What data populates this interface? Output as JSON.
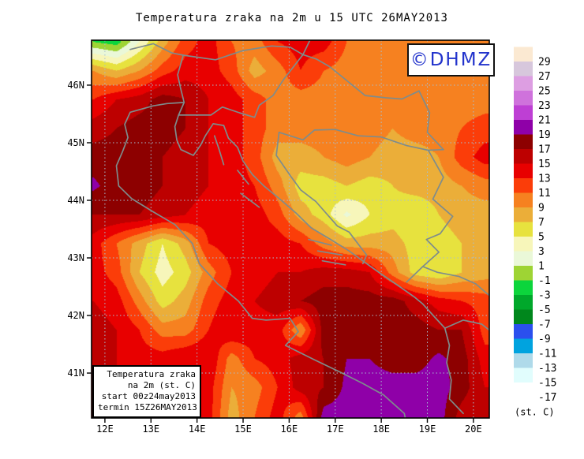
{
  "title": "Temperatura zraka na 2m u 15 UTC 26MAY2013",
  "logo": {
    "text": "©DHMZ",
    "color": "#2233cc"
  },
  "info_box": {
    "lines": [
      "Temperatura zraka",
      "na 2m (st. C)",
      "start 00z24may2013",
      "termin 15Z26MAY2013"
    ]
  },
  "axes": {
    "x_tick_labels": [
      "12E",
      "13E",
      "14E",
      "15E",
      "16E",
      "17E",
      "18E",
      "19E",
      "20E"
    ],
    "x_tick_values": [
      12,
      13,
      14,
      15,
      16,
      17,
      18,
      19,
      20
    ],
    "y_tick_labels": [
      "46N",
      "45N",
      "44N",
      "43N",
      "42N",
      "41N"
    ],
    "y_tick_values": [
      46,
      45,
      44,
      43,
      42,
      41
    ],
    "lon_range": [
      11.71,
      20.345
    ],
    "lat_range": [
      40.22,
      46.78
    ]
  },
  "colorbar": {
    "unit_label": "(st. C)",
    "tick_labels": [
      "29",
      "27",
      "25",
      "23",
      "21",
      "19",
      "17",
      "15",
      "13",
      "11",
      "9",
      "7",
      "5",
      "3",
      "1",
      "-1",
      "-3",
      "-5",
      "-7",
      "-9",
      "-11",
      "-13",
      "-15",
      "-17"
    ],
    "levels": [
      -17,
      -15,
      -13,
      -11,
      -9,
      -7,
      -5,
      -3,
      -1,
      1,
      3,
      5,
      7,
      9,
      11,
      13,
      15,
      17,
      19,
      21,
      23,
      25,
      27,
      29
    ],
    "band_colors": [
      "#FFFFFF",
      "#E1FDFD",
      "#AFDAEA",
      "#00A3DF",
      "#2B50EE",
      "#00871C",
      "#00A82B",
      "#0CD53C",
      "#9ED434",
      "#EAF8D8",
      "#F7F6BA",
      "#E7E23E",
      "#EBAE39",
      "#F68120",
      "#FB3D09",
      "#E80000",
      "#BD0000",
      "#8D0000",
      "#8F00A8",
      "#BE3FD4",
      "#CF72DC",
      "#DD9EE2",
      "#D7C7DC",
      "#FBE9D2"
    ]
  },
  "map_style": {
    "grid_color": "#a6bfd3",
    "coast_color": "#7e8c8c",
    "frame_color": "#000000",
    "background": "#ffffff"
  },
  "chart_data": {
    "type": "heatmap",
    "title": "Temperatura zraka na 2m u 15 UTC 26MAY2013",
    "units": "st. C",
    "valid_time": "15 UTC 26MAY2013",
    "x_lon": [
      11.75,
      12.25,
      12.75,
      13.25,
      13.75,
      14.25,
      14.75,
      15.25,
      15.75,
      16.25,
      16.75,
      17.25,
      17.75,
      18.25,
      18.75,
      19.25,
      19.75,
      20.25
    ],
    "y_lat": [
      46.75,
      46.25,
      45.75,
      45.25,
      44.75,
      44.25,
      43.75,
      43.25,
      42.75,
      42.25,
      41.75,
      41.25,
      40.75,
      40.25
    ],
    "values": [
      [
        -1,
        -2,
        3,
        8,
        12,
        14,
        11,
        10,
        13,
        14,
        14,
        11,
        10,
        10,
        10,
        10,
        10,
        10
      ],
      [
        9,
        7,
        9,
        12,
        14,
        14,
        12,
        8,
        10,
        13,
        11,
        10,
        10,
        10,
        10,
        10,
        11,
        11
      ],
      [
        13,
        15,
        16,
        18,
        17,
        15,
        14,
        12,
        10,
        10,
        10,
        10,
        10,
        10,
        10,
        10,
        10,
        10
      ],
      [
        16,
        17,
        18,
        18,
        17,
        15,
        14,
        12,
        10,
        10,
        10,
        10,
        10,
        9,
        10,
        10,
        11,
        12
      ],
      [
        18,
        18,
        18,
        17,
        16,
        15,
        14,
        12,
        8,
        8,
        9,
        10,
        9,
        8,
        8,
        9,
        12,
        14
      ],
      [
        19.4,
        18,
        18,
        17,
        16,
        15,
        14,
        13,
        10,
        6,
        6,
        7,
        6,
        7,
        8,
        8,
        9,
        10
      ],
      [
        17,
        17,
        17,
        16,
        15,
        14,
        14,
        14,
        12,
        8,
        6,
        2.5,
        5,
        6,
        5,
        7,
        8,
        8
      ],
      [
        14,
        11,
        8,
        5,
        8,
        13,
        14,
        14,
        14,
        13,
        10,
        8,
        8,
        8,
        6,
        6,
        7,
        8
      ],
      [
        14,
        12,
        7,
        4,
        6,
        10,
        13,
        14,
        15,
        15,
        16,
        16,
        15,
        10,
        6,
        5,
        7,
        8
      ],
      [
        15,
        14,
        10,
        6,
        8,
        12,
        14,
        15,
        16,
        17,
        18,
        18,
        18,
        18,
        16,
        14,
        13,
        12
      ],
      [
        16,
        15,
        13,
        10,
        10,
        13,
        15,
        14,
        14,
        9,
        18,
        18,
        18,
        18,
        18,
        17,
        17,
        12
      ],
      [
        15,
        15,
        14,
        14,
        15,
        15,
        10,
        13,
        14,
        16,
        17,
        19,
        19,
        18,
        18,
        19.5,
        18,
        14
      ],
      [
        16,
        15,
        15,
        15,
        15,
        14,
        9,
        10,
        13,
        16,
        17,
        19.5,
        20,
        20,
        20,
        20,
        18,
        15
      ],
      [
        16,
        16,
        16,
        15,
        15,
        14,
        8,
        11,
        14,
        10,
        20,
        20,
        20,
        20,
        20,
        20,
        16,
        15
      ]
    ]
  },
  "coastlines": [
    {
      "name": "italy-adriatic-coast",
      "points": [
        [
          13.72,
          45.7
        ],
        [
          13.35,
          45.68
        ],
        [
          13.05,
          45.64
        ],
        [
          12.55,
          45.53
        ],
        [
          12.43,
          45.32
        ],
        [
          12.5,
          45.09
        ],
        [
          12.38,
          44.84
        ],
        [
          12.25,
          44.6
        ],
        [
          12.3,
          44.25
        ],
        [
          12.58,
          44.03
        ],
        [
          13.05,
          43.8
        ],
        [
          13.52,
          43.58
        ],
        [
          13.9,
          43.25
        ],
        [
          14.05,
          42.9
        ],
        [
          14.45,
          42.55
        ],
        [
          14.9,
          42.25
        ],
        [
          15.2,
          41.95
        ],
        [
          15.5,
          41.92
        ],
        [
          16.02,
          41.95
        ],
        [
          16.2,
          41.72
        ],
        [
          15.92,
          41.48
        ],
        [
          16.55,
          41.23
        ],
        [
          17.1,
          41.02
        ],
        [
          17.6,
          40.82
        ],
        [
          18.05,
          40.62
        ],
        [
          18.5,
          40.3
        ],
        [
          18.52,
          40.22
        ]
      ]
    },
    {
      "name": "istria-dalmatia-albania-coast",
      "points": [
        [
          13.72,
          45.7
        ],
        [
          13.6,
          45.48
        ],
        [
          13.52,
          45.28
        ],
        [
          13.56,
          45.05
        ],
        [
          13.65,
          44.88
        ],
        [
          13.92,
          44.78
        ],
        [
          14.08,
          44.96
        ],
        [
          14.18,
          45.12
        ],
        [
          14.35,
          45.33
        ],
        [
          14.58,
          45.3
        ],
        [
          14.68,
          45.08
        ],
        [
          14.88,
          44.92
        ],
        [
          15.0,
          44.68
        ],
        [
          15.2,
          44.45
        ],
        [
          15.45,
          44.25
        ],
        [
          15.8,
          44.02
        ],
        [
          16.15,
          43.78
        ],
        [
          16.48,
          43.52
        ],
        [
          16.9,
          43.32
        ],
        [
          17.3,
          43.12
        ],
        [
          17.65,
          42.92
        ],
        [
          18.0,
          42.72
        ],
        [
          18.4,
          42.5
        ],
        [
          18.72,
          42.32
        ],
        [
          18.9,
          42.2
        ],
        [
          19.15,
          41.98
        ],
        [
          19.38,
          41.78
        ],
        [
          19.48,
          41.48
        ],
        [
          19.42,
          41.18
        ],
        [
          19.52,
          40.88
        ],
        [
          19.48,
          40.55
        ],
        [
          19.78,
          40.3
        ]
      ]
    },
    {
      "name": "island-cres",
      "points": [
        [
          14.38,
          45.12
        ],
        [
          14.48,
          44.88
        ],
        [
          14.58,
          44.62
        ]
      ]
    },
    {
      "name": "island-pag",
      "points": [
        [
          14.88,
          44.52
        ],
        [
          15.12,
          44.28
        ]
      ]
    },
    {
      "name": "island-dugi-otok",
      "points": [
        [
          14.95,
          44.12
        ],
        [
          15.35,
          43.88
        ]
      ]
    },
    {
      "name": "island-brac",
      "points": [
        [
          16.42,
          43.32
        ],
        [
          16.92,
          43.22
        ]
      ]
    },
    {
      "name": "island-hvar",
      "points": [
        [
          16.62,
          43.12
        ],
        [
          17.15,
          43.05
        ]
      ]
    },
    {
      "name": "island-korcula",
      "points": [
        [
          16.72,
          42.95
        ],
        [
          17.22,
          42.88
        ]
      ]
    },
    {
      "name": "border-alps-north",
      "points": [
        [
          12.55,
          46.62
        ],
        [
          13.05,
          46.72
        ],
        [
          13.45,
          46.56
        ],
        [
          13.7,
          46.52
        ],
        [
          14.4,
          46.44
        ],
        [
          15.0,
          46.6
        ],
        [
          15.62,
          46.68
        ],
        [
          16.02,
          46.66
        ],
        [
          16.3,
          46.53
        ]
      ]
    },
    {
      "name": "border-austria-hungary",
      "points": [
        [
          16.45,
          46.78
        ],
        [
          16.3,
          46.53
        ]
      ]
    },
    {
      "name": "border-italy-slovenia",
      "points": [
        [
          13.7,
          46.52
        ],
        [
          13.58,
          46.18
        ],
        [
          13.64,
          45.96
        ],
        [
          13.72,
          45.7
        ]
      ]
    },
    {
      "name": "border-slovenia-croatia",
      "points": [
        [
          13.6,
          45.48
        ],
        [
          13.98,
          45.48
        ],
        [
          14.3,
          45.48
        ],
        [
          14.55,
          45.62
        ],
        [
          14.92,
          45.52
        ],
        [
          15.25,
          45.44
        ],
        [
          15.35,
          45.65
        ],
        [
          15.65,
          45.82
        ],
        [
          15.88,
          46.1
        ],
        [
          16.3,
          46.53
        ]
      ]
    },
    {
      "name": "border-croatia-hungary",
      "points": [
        [
          16.3,
          46.53
        ],
        [
          16.6,
          46.45
        ],
        [
          16.88,
          46.32
        ],
        [
          17.22,
          46.1
        ],
        [
          17.65,
          45.82
        ],
        [
          18.1,
          45.78
        ],
        [
          18.45,
          45.76
        ],
        [
          18.82,
          45.9
        ]
      ]
    },
    {
      "name": "border-croatia-serbia",
      "points": [
        [
          18.82,
          45.9
        ],
        [
          19.05,
          45.52
        ],
        [
          19.0,
          45.18
        ],
        [
          19.35,
          44.88
        ]
      ]
    },
    {
      "name": "border-sava-bih",
      "points": [
        [
          15.78,
          45.18
        ],
        [
          16.3,
          45.05
        ],
        [
          16.55,
          45.22
        ],
        [
          17.0,
          45.23
        ],
        [
          17.5,
          45.12
        ],
        [
          18.0,
          45.1
        ],
        [
          18.55,
          44.95
        ],
        [
          19.02,
          44.87
        ],
        [
          19.35,
          44.88
        ]
      ]
    },
    {
      "name": "border-bih-west",
      "points": [
        [
          15.78,
          45.18
        ],
        [
          15.72,
          44.78
        ],
        [
          16.05,
          44.4
        ],
        [
          16.25,
          44.18
        ],
        [
          16.58,
          43.98
        ],
        [
          17.05,
          43.55
        ],
        [
          17.3,
          43.45
        ],
        [
          17.68,
          43.05
        ],
        [
          17.6,
          42.9
        ]
      ]
    },
    {
      "name": "border-drina-east",
      "points": [
        [
          19.02,
          44.87
        ],
        [
          19.35,
          44.4
        ],
        [
          19.12,
          44.02
        ],
        [
          19.55,
          43.72
        ],
        [
          19.28,
          43.42
        ],
        [
          18.98,
          43.32
        ],
        [
          19.25,
          43.1
        ],
        [
          18.9,
          42.85
        ],
        [
          18.55,
          42.58
        ]
      ]
    },
    {
      "name": "border-montenegro-albania",
      "points": [
        [
          18.9,
          42.85
        ],
        [
          19.22,
          42.75
        ],
        [
          19.68,
          42.68
        ],
        [
          20.05,
          42.55
        ],
        [
          20.34,
          42.35
        ]
      ]
    },
    {
      "name": "border-albania-inland",
      "points": [
        [
          19.38,
          41.78
        ],
        [
          19.78,
          41.92
        ],
        [
          20.18,
          41.85
        ],
        [
          20.34,
          41.75
        ]
      ]
    }
  ]
}
